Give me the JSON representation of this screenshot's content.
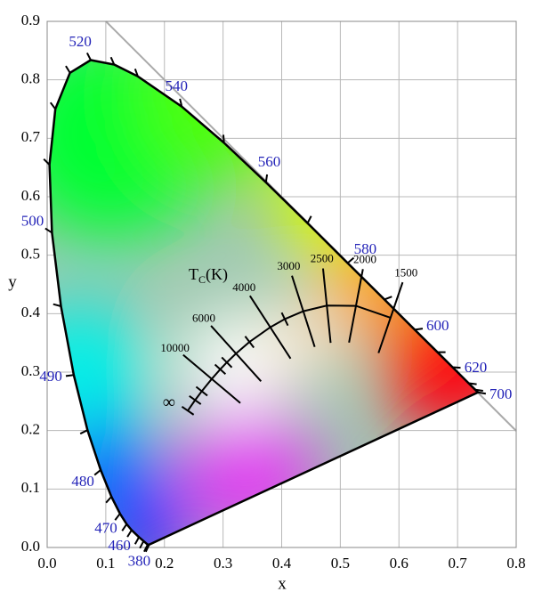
{
  "chart_data": {
    "type": "chromaticity",
    "xlabel": "x",
    "ylabel": "y",
    "xlim": [
      0,
      0.8
    ],
    "ylim": [
      0,
      0.9
    ],
    "xticks": [
      {
        "value": 0,
        "label": "0.0"
      },
      0.1,
      0.2,
      0.3,
      0.4,
      0.5,
      0.6,
      0.7,
      0.8
    ],
    "yticks": [
      {
        "value": 0,
        "label": "0.0"
      },
      0.1,
      0.2,
      0.3,
      0.4,
      0.5,
      0.6,
      0.7,
      0.8,
      0.9
    ],
    "grid": true,
    "spectral_locus": {
      "color": "#000000",
      "label_color": "#2424b8",
      "labels": [
        380,
        null,
        null,
        null,
        460,
        null,
        470,
        null,
        480,
        null,
        490,
        null,
        500,
        null,
        null,
        null,
        520,
        null,
        null,
        540,
        null,
        560,
        null,
        580,
        null,
        600,
        null,
        620,
        null,
        null,
        700
      ],
      "x": [
        0.1741,
        0.1714,
        0.1644,
        0.1566,
        0.144,
        0.1355,
        0.1241,
        0.1096,
        0.0913,
        0.0687,
        0.0454,
        0.0235,
        0.0082,
        0.0039,
        0.0139,
        0.0389,
        0.0743,
        0.1142,
        0.1547,
        0.2296,
        0.3016,
        0.3731,
        0.4441,
        0.5125,
        0.5752,
        0.627,
        0.6658,
        0.6915,
        0.719,
        0.73,
        0.7347
      ],
      "y": [
        0.005,
        0.0051,
        0.0109,
        0.0177,
        0.0297,
        0.0399,
        0.0578,
        0.0868,
        0.1327,
        0.2007,
        0.295,
        0.4127,
        0.5384,
        0.6548,
        0.7502,
        0.812,
        0.8338,
        0.8262,
        0.8059,
        0.7543,
        0.6923,
        0.6245,
        0.5547,
        0.4866,
        0.4242,
        0.3725,
        0.334,
        0.3083,
        0.2809,
        0.27,
        0.2653
      ]
    },
    "planckian_locus": {
      "color": "#000000",
      "label": {
        "symbol": "T",
        "subscript": "C",
        "unit": "(K)"
      },
      "labels": [
        1500,
        2000,
        2500,
        3000,
        null,
        4000,
        null,
        6000,
        null,
        null,
        10000,
        null,
        null,
        "∞"
      ],
      "x": [
        0.5857,
        0.5267,
        0.477,
        0.4369,
        0.4053,
        0.3805,
        0.3451,
        0.3221,
        0.3064,
        0.2952,
        0.2807,
        0.2637,
        0.2523,
        0.2399
      ],
      "y": [
        0.3931,
        0.4133,
        0.4137,
        0.4041,
        0.3907,
        0.3768,
        0.3516,
        0.3318,
        0.3166,
        0.3048,
        0.2883,
        0.2673,
        0.2521,
        0.234
      ]
    }
  }
}
